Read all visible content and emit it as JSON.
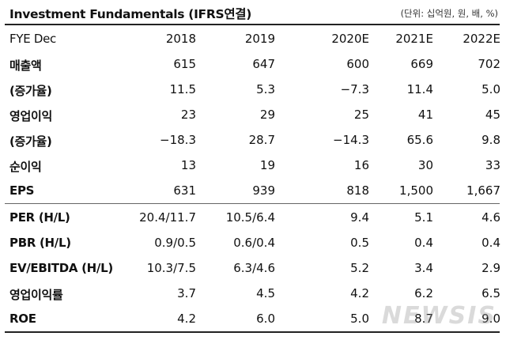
{
  "header": {
    "title": "Investment Fundamentals (IFRS연결)",
    "unit": "(단위: 십억원, 원, 배, %)"
  },
  "columns": [
    "FYE Dec",
    "2018",
    "2019",
    "2020E",
    "2021E",
    "2022E"
  ],
  "rows": [
    {
      "label": "매출액",
      "values": [
        "615",
        "647",
        "600",
        "669",
        "702"
      ]
    },
    {
      "label": "(증가율)",
      "values": [
        "11.5",
        "5.3",
        "−7.3",
        "11.4",
        "5.0"
      ]
    },
    {
      "label": "영업이익",
      "values": [
        "23",
        "29",
        "25",
        "41",
        "45"
      ]
    },
    {
      "label": "(증가율)",
      "values": [
        "−18.3",
        "28.7",
        "−14.3",
        "65.6",
        "9.8"
      ]
    },
    {
      "label": "순이익",
      "values": [
        "13",
        "19",
        "16",
        "30",
        "33"
      ]
    },
    {
      "label": "EPS",
      "values": [
        "631",
        "939",
        "818",
        "1,500",
        "1,667"
      ]
    },
    {
      "label": "PER (H/L)",
      "values": [
        "20.4/11.7",
        "10.5/6.4",
        "9.4",
        "5.1",
        "4.6"
      ]
    },
    {
      "label": "PBR (H/L)",
      "values": [
        "0.9/0.5",
        "0.6/0.4",
        "0.5",
        "0.4",
        "0.4"
      ]
    },
    {
      "label": "EV/EBITDA (H/L)",
      "values": [
        "10.3/7.5",
        "6.3/4.6",
        "5.2",
        "3.4",
        "2.9"
      ]
    },
    {
      "label": "영업이익률",
      "values": [
        "3.7",
        "4.5",
        "4.2",
        "6.2",
        "6.5"
      ]
    },
    {
      "label": "ROE",
      "values": [
        "4.2",
        "6.0",
        "5.0",
        "8.7",
        "9.0"
      ]
    }
  ],
  "watermark": "NEWSIS"
}
